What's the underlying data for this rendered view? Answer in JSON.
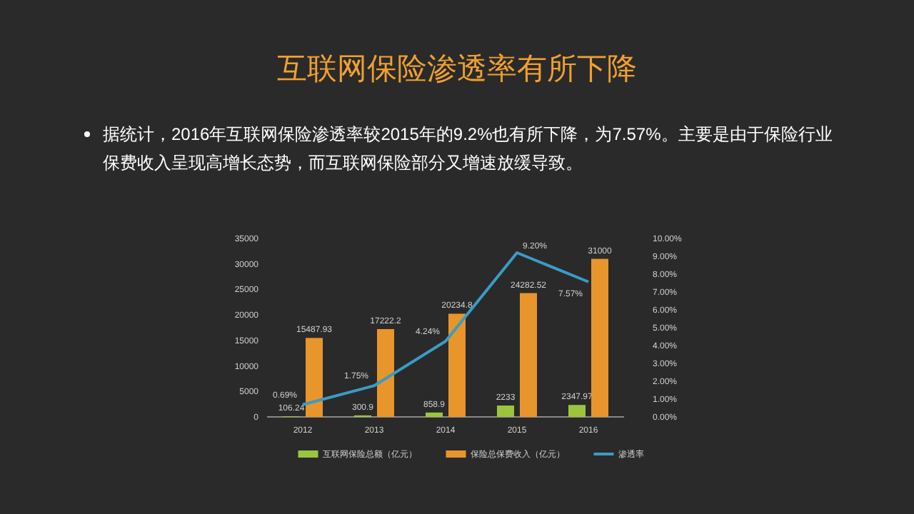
{
  "chart_data": {
    "type": "bar",
    "title": "互联网保险渗透率有所下降",
    "subtitle": "据统计，2016年互联网保险渗透率较2015年的9.2%也有所下降，为7.57%。主要是由于保险行业保费收入呈现高增长态势，而互联网保险部分又增速放缓导致。",
    "categories": [
      "2012",
      "2013",
      "2014",
      "2015",
      "2016"
    ],
    "series": [
      {
        "name": "互联网保险总额（亿元）",
        "color": "#9bc53d",
        "values": [
          106.24,
          300.9,
          858.9,
          2233,
          2347.97
        ],
        "value_labels": [
          "106.24",
          "300.9",
          "858.9",
          "2233",
          "2347.97"
        ]
      },
      {
        "name": "保险总保费收入（亿元）",
        "color": "#e8952b",
        "values": [
          15487.93,
          17222.2,
          20234.8,
          24282.52,
          31000
        ],
        "value_labels": [
          "15487.93",
          "17222.2",
          "20234.8",
          "24282.52",
          "31000"
        ]
      },
      {
        "name": "渗透率",
        "type": "line",
        "axis": "y2",
        "color": "#3a9cc4",
        "values": [
          0.69,
          1.75,
          4.24,
          9.2,
          7.57
        ],
        "value_labels": [
          "0.69%",
          "1.75%",
          "4.24%",
          "9.20%",
          "7.57%"
        ]
      }
    ],
    "ylim": [
      0,
      35000
    ],
    "yticks": [
      0,
      5000,
      10000,
      15000,
      20000,
      25000,
      30000,
      35000
    ],
    "y2lim": [
      0,
      10
    ],
    "y2ticks": [
      {
        "value": 0,
        "label": "0.00%"
      },
      {
        "value": 1,
        "label": "1.00%"
      },
      {
        "value": 2,
        "label": "2.00%"
      },
      {
        "value": 3,
        "label": "3.00%"
      },
      {
        "value": 4,
        "label": "4.00%"
      },
      {
        "value": 5,
        "label": "5.00%"
      },
      {
        "value": 6,
        "label": "6.00%"
      },
      {
        "value": 7,
        "label": "7.00%"
      },
      {
        "value": 8,
        "label": "8.00%"
      },
      {
        "value": 9,
        "label": "9.00%"
      },
      {
        "value": 10,
        "label": "10.00%"
      }
    ],
    "legend": "bottom",
    "marker": "none",
    "grid": false
  }
}
